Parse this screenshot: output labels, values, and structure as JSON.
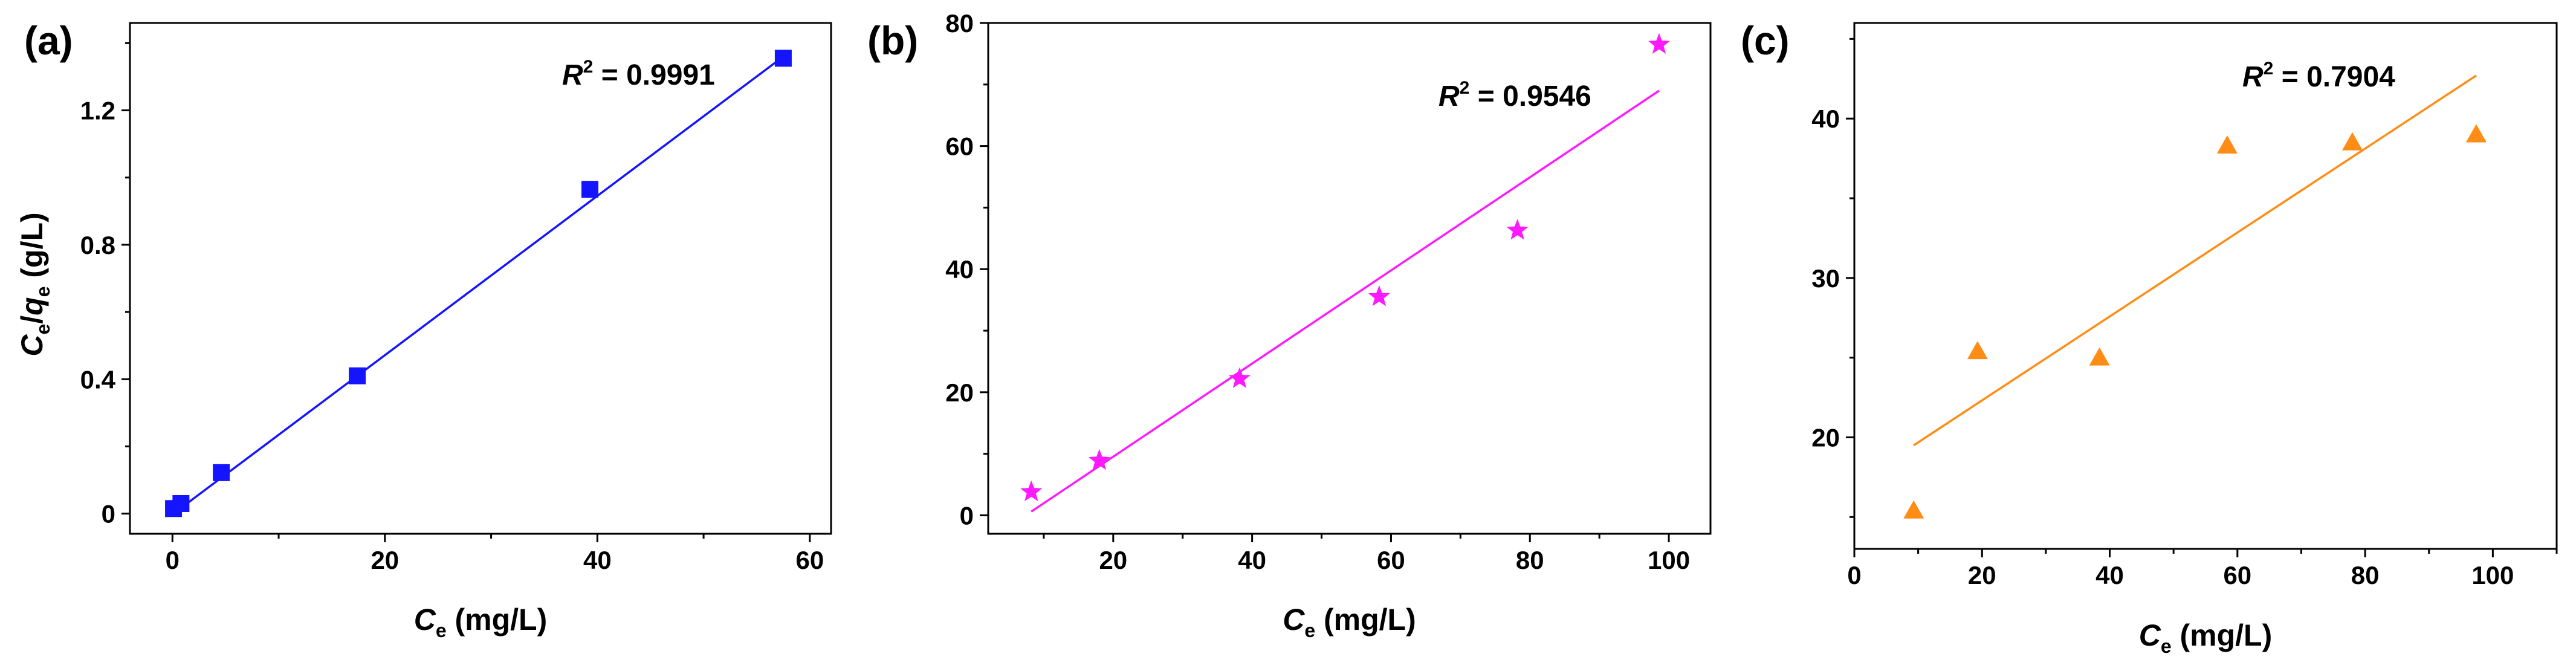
{
  "chart_data": [
    {
      "panel_label": "(a)",
      "type": "scatter",
      "marker": "square",
      "color": "#1414ff",
      "xlabel": {
        "main": "C",
        "sub": "e",
        "unit": " (mg/L)"
      },
      "ylabel": {
        "main1": "C",
        "sub1": "e",
        "sep": "/",
        "main2": "q",
        "sub2": "e",
        "unit": " (g/L)"
      },
      "xlim": [
        -4,
        62
      ],
      "ylim": [
        -0.06,
        1.46
      ],
      "xticks": [
        0,
        20,
        40,
        60
      ],
      "xtick_labels": [
        "0",
        "20",
        "40",
        "60"
      ],
      "yticks": [
        0,
        0.4,
        0.8,
        1.2
      ],
      "ytick_labels": [
        "0",
        "0.4",
        "0.8",
        "1.2"
      ],
      "x": [
        0.1,
        0.8,
        4.6,
        17.4,
        39.3,
        57.5
      ],
      "y": [
        0.015,
        0.03,
        0.122,
        0.41,
        0.965,
        1.355
      ],
      "fit": {
        "x": [
          0.1,
          57.5
        ],
        "y": [
          0.0,
          1.36
        ]
      },
      "r2": {
        "label_main": "R",
        "label_sup": "2",
        "value": " = 0.9991"
      }
    },
    {
      "panel_label": "(b)",
      "type": "scatter",
      "marker": "star",
      "color": "#ff19ff",
      "xlabel": {
        "main": "C",
        "sub": "e",
        "unit": " (mg/L)"
      },
      "xlim": [
        2,
        106
      ],
      "ylim": [
        -3,
        80
      ],
      "xticks": [
        20,
        40,
        60,
        80,
        100
      ],
      "xtick_labels": [
        "20",
        "40",
        "60",
        "80",
        "100"
      ],
      "yticks": [
        0,
        20,
        40,
        60,
        80
      ],
      "ytick_labels": [
        "0",
        "20",
        "40",
        "60",
        "80"
      ],
      "x": [
        8.2,
        18.0,
        38.2,
        58.3,
        78.2,
        98.6
      ],
      "y": [
        3.8,
        8.9,
        22.2,
        35.5,
        46.3,
        76.5
      ],
      "fit": {
        "x": [
          8.2,
          98.6
        ],
        "y": [
          0.6,
          69.0
        ]
      },
      "r2": {
        "label_main": "R",
        "label_sup": "2",
        "value": " = 0.9546"
      }
    },
    {
      "panel_label": "(c)",
      "type": "scatter",
      "marker": "triangle",
      "color": "#ff8c14",
      "xlabel": {
        "main": "C",
        "sub": "e",
        "unit": " (mg/L)"
      },
      "xlim": [
        0,
        110
      ],
      "ylim": [
        13,
        46
      ],
      "xticks": [
        0,
        20,
        40,
        60,
        80,
        100
      ],
      "xtick_labels": [
        "0",
        "20",
        "40",
        "60",
        "80",
        "100"
      ],
      "yticks": [
        20,
        30,
        40
      ],
      "ytick_labels": [
        "20",
        "30",
        "40"
      ],
      "x": [
        9.3,
        19.3,
        38.4,
        58.4,
        78.0,
        97.4
      ],
      "y": [
        15.4,
        25.4,
        25.0,
        38.3,
        38.5,
        39.0
      ],
      "fit": {
        "x": [
          9.3,
          97.4
        ],
        "y": [
          19.5,
          42.7
        ]
      },
      "r2": {
        "label_main": "R",
        "label_sup": "2",
        "value": " = 0.7904"
      }
    }
  ]
}
